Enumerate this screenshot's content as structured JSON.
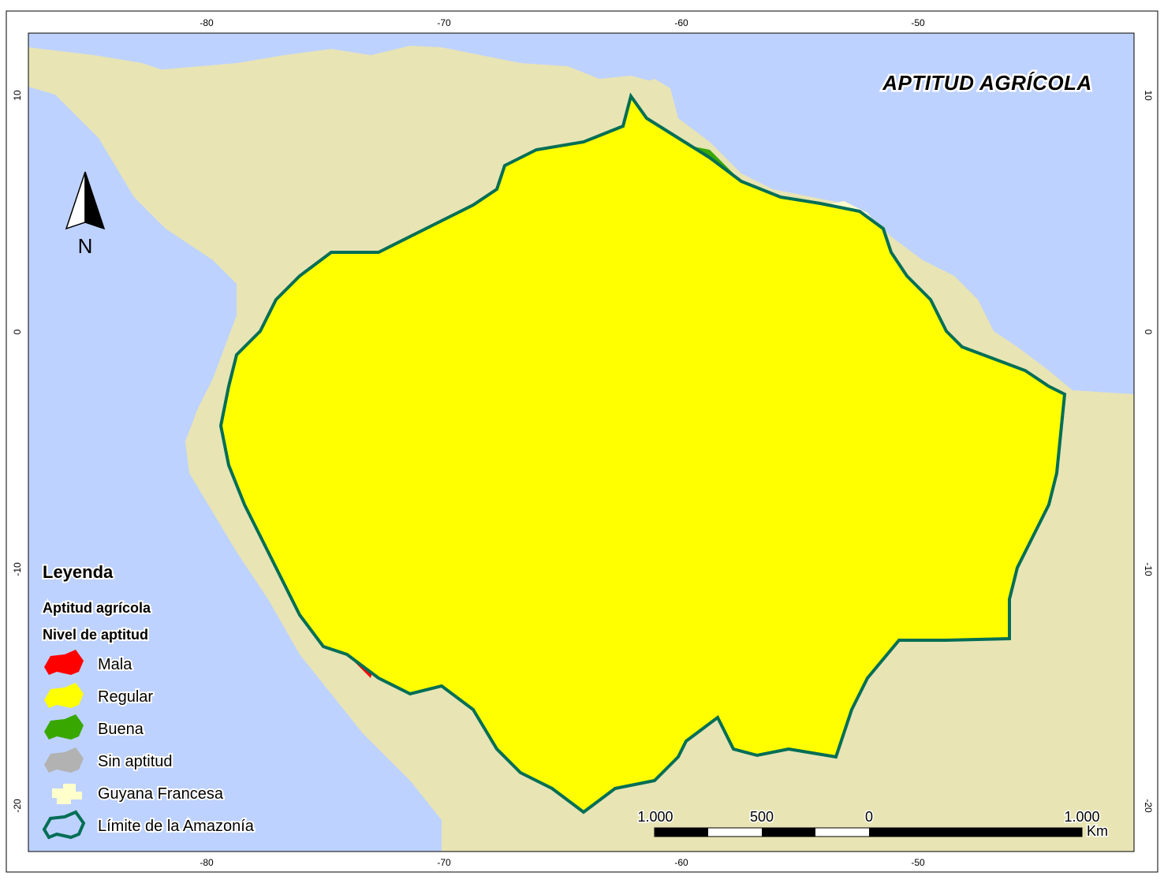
{
  "title": "APTITUD AGRÍCOLA",
  "graticule": {
    "longitude_labels": [
      "-80",
      "-70",
      "-60",
      "-50"
    ],
    "latitude_labels": [
      "10",
      "0",
      "-10",
      "-20"
    ]
  },
  "north_arrow": {
    "label": "N"
  },
  "legend": {
    "heading": "Leyenda",
    "subtitle": "Aptitud agrícola",
    "group": "Nivel de aptitud",
    "items": [
      {
        "label": "Mala",
        "color": "#ff0000"
      },
      {
        "label": "Regular",
        "color": "#ffff00"
      },
      {
        "label": "Buena",
        "color": "#38a800"
      },
      {
        "label": "Sin aptitud",
        "color": "#b2b2b2"
      },
      {
        "label": "Guyana Francesa",
        "color": "#ffffcc"
      },
      {
        "label": "Límite de la Amazonía",
        "color": "#006e55"
      }
    ]
  },
  "scale_bar": {
    "labels": [
      "1.000",
      "500",
      "0",
      "1.000"
    ],
    "unit": "Km"
  },
  "colors": {
    "ocean": "#bed2ff",
    "land": "#e8e4b4",
    "river": "#9ec8f0",
    "boundary": "#006e55",
    "mala": "#ff0000",
    "regular": "#ffff00",
    "buena": "#38a800",
    "sin_aptitud": "#b2b2b2",
    "guyana": "#ffffcc"
  }
}
